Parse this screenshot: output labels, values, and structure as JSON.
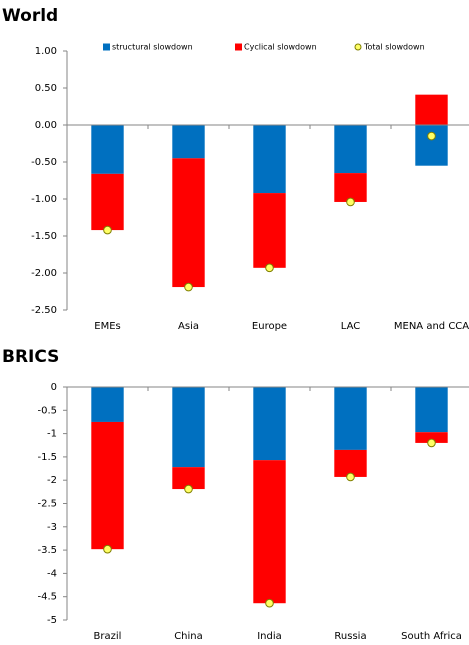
{
  "chart_data": [
    {
      "type": "bar",
      "stacked": true,
      "title": "World",
      "categories": [
        "EMEs",
        "Asia",
        "Europe",
        "LAC",
        "MENA and CCA"
      ],
      "series": [
        {
          "name": "structural slowdown",
          "color": "#0070c0",
          "values": [
            -0.66,
            -0.45,
            -0.92,
            -0.65,
            -0.55
          ]
        },
        {
          "name": "Cyclical slowdown",
          "color": "#ff0000",
          "values": [
            -0.76,
            -1.74,
            -1.01,
            -0.39,
            0.41
          ]
        },
        {
          "name": "Total slowdown",
          "color": "#ffff66",
          "kind": "marker",
          "values": [
            -1.42,
            -2.19,
            -1.93,
            -1.04,
            -0.15
          ]
        }
      ],
      "ylim": [
        -2.5,
        1
      ],
      "yticks": [
        {
          "value": -2.5,
          "label": "-2.50"
        },
        {
          "value": -2,
          "label": "-2.00"
        },
        {
          "value": -1.5,
          "label": "-1.50"
        },
        {
          "value": -1,
          "label": "-1.00"
        },
        {
          "value": -0.5,
          "label": "-0.50"
        },
        {
          "value": 0,
          "label": "0.00"
        },
        {
          "value": 0.5,
          "label": "0.50"
        },
        {
          "value": 1,
          "label": "1.00"
        }
      ],
      "legend": "top"
    },
    {
      "type": "bar",
      "stacked": true,
      "title": "BRICS",
      "categories": [
        "Brazil",
        "China",
        "India",
        "Russia",
        "South Africa"
      ],
      "series": [
        {
          "color": "#0070c0",
          "values": [
            -0.75,
            -1.72,
            -1.57,
            -1.35,
            -0.97
          ]
        },
        {
          "color": "#ff0000",
          "values": [
            -2.73,
            -0.47,
            -3.07,
            -0.58,
            -0.23
          ]
        },
        {
          "color": "#ffff66",
          "kind": "marker",
          "values": [
            -3.48,
            -2.19,
            -4.64,
            -1.93,
            -1.2
          ]
        }
      ],
      "ylim": [
        -5,
        0
      ],
      "yticks": [
        -5,
        -4.5,
        -4,
        -3.5,
        -3,
        -2.5,
        -2,
        -1.5,
        -1,
        -0.5,
        0
      ]
    }
  ]
}
